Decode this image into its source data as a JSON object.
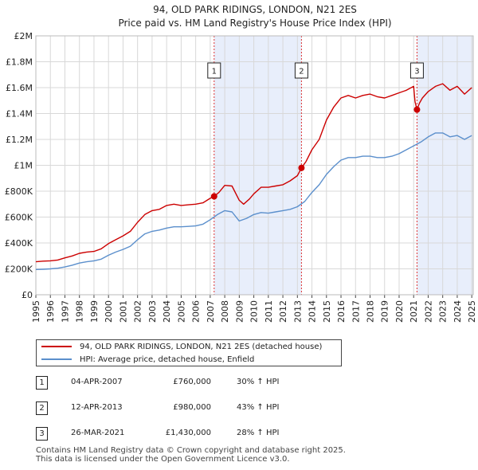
{
  "chart_data": {
    "type": "line",
    "title": "94, OLD PARK RIDINGS, LONDON, N21 2ES",
    "subtitle": "Price paid vs. HM Land Registry's House Price Index (HPI)",
    "xlim": [
      1995,
      2025.1
    ],
    "ylim": [
      0,
      2000000
    ],
    "y_ticks": [
      0,
      200000,
      400000,
      600000,
      800000,
      1000000,
      1200000,
      1400000,
      1600000,
      1800000,
      2000000
    ],
    "y_tick_labels": [
      "£0",
      "£200K",
      "£400K",
      "£600K",
      "£800K",
      "£1M",
      "£1.2M",
      "£1.4M",
      "£1.6M",
      "£1.8M",
      "£2M"
    ],
    "x_ticks": [
      1995,
      1996,
      1997,
      1998,
      1999,
      2000,
      2001,
      2002,
      2003,
      2004,
      2005,
      2006,
      2007,
      2008,
      2009,
      2010,
      2011,
      2012,
      2013,
      2014,
      2015,
      2016,
      2017,
      2018,
      2019,
      2020,
      2021,
      2022,
      2023,
      2024,
      2025
    ],
    "x_tick_labels": [
      "1995",
      "1996",
      "1997",
      "1998",
      "1999",
      "2000",
      "2001",
      "2002",
      "2003",
      "2004",
      "2005",
      "2006",
      "2007",
      "2008",
      "2009",
      "2010",
      "2011",
      "2012",
      "2013",
      "2014",
      "2015",
      "2016",
      "2017",
      "2018",
      "2019",
      "2020",
      "2021",
      "2022",
      "2023",
      "2024",
      "2025"
    ],
    "grid": true,
    "series": [
      {
        "name": "94, OLD PARK RIDINGS, LONDON, N21 2ES (detached house)",
        "color": "#cc0000",
        "x": [
          1995,
          1995.5,
          1996,
          1996.5,
          1997,
          1997.5,
          1998,
          1998.5,
          1999,
          1999.5,
          2000,
          2000.5,
          2001,
          2001.5,
          2002,
          2002.5,
          2003,
          2003.5,
          2004,
          2004.5,
          2005,
          2005.5,
          2006,
          2006.5,
          2007,
          2007.27,
          2007.6,
          2008,
          2008.5,
          2009,
          2009.3,
          2009.7,
          2010,
          2010.5,
          2011,
          2011.5,
          2012,
          2012.5,
          2013,
          2013.28,
          2013.6,
          2014,
          2014.5,
          2015,
          2015.5,
          2016,
          2016.5,
          2017,
          2017.5,
          2018,
          2018.5,
          2019,
          2019.5,
          2020,
          2020.5,
          2021,
          2021.1,
          2021.23,
          2021.4,
          2021.6,
          2022,
          2022.5,
          2023,
          2023.5,
          2024,
          2024.5,
          2025
        ],
        "values": [
          255000,
          260000,
          262000,
          268000,
          285000,
          300000,
          320000,
          330000,
          335000,
          355000,
          395000,
          425000,
          455000,
          490000,
          560000,
          620000,
          650000,
          660000,
          690000,
          700000,
          690000,
          695000,
          700000,
          710000,
          745000,
          760000,
          790000,
          845000,
          840000,
          730000,
          700000,
          740000,
          780000,
          830000,
          830000,
          840000,
          850000,
          880000,
          920000,
          980000,
          1030000,
          1120000,
          1200000,
          1350000,
          1450000,
          1520000,
          1540000,
          1520000,
          1540000,
          1550000,
          1530000,
          1520000,
          1540000,
          1560000,
          1580000,
          1610000,
          1490000,
          1430000,
          1480000,
          1520000,
          1570000,
          1610000,
          1630000,
          1580000,
          1610000,
          1550000,
          1600000
        ]
      },
      {
        "name": "HPI: Average price, detached house, Enfield",
        "color": "#5b8fcc",
        "x": [
          1995,
          1995.5,
          1996,
          1996.5,
          1997,
          1997.5,
          1998,
          1998.5,
          1999,
          1999.5,
          2000,
          2000.5,
          2001,
          2001.5,
          2002,
          2002.5,
          2003,
          2003.5,
          2004,
          2004.5,
          2005,
          2005.5,
          2006,
          2006.5,
          2007,
          2007.5,
          2008,
          2008.5,
          2009,
          2009.5,
          2010,
          2010.5,
          2011,
          2011.5,
          2012,
          2012.5,
          2013,
          2013.5,
          2014,
          2014.5,
          2015,
          2015.5,
          2016,
          2016.5,
          2017,
          2017.5,
          2018,
          2018.5,
          2019,
          2019.5,
          2020,
          2020.5,
          2021,
          2021.5,
          2022,
          2022.5,
          2023,
          2023.5,
          2024,
          2024.5,
          2025
        ],
        "values": [
          195000,
          197000,
          200000,
          205000,
          215000,
          228000,
          245000,
          255000,
          262000,
          275000,
          305000,
          330000,
          350000,
          375000,
          425000,
          470000,
          490000,
          500000,
          515000,
          525000,
          525000,
          528000,
          532000,
          545000,
          580000,
          620000,
          650000,
          640000,
          570000,
          590000,
          620000,
          635000,
          630000,
          640000,
          650000,
          660000,
          680000,
          720000,
          790000,
          850000,
          930000,
          990000,
          1040000,
          1060000,
          1060000,
          1070000,
          1070000,
          1060000,
          1060000,
          1070000,
          1090000,
          1120000,
          1150000,
          1180000,
          1220000,
          1250000,
          1250000,
          1220000,
          1230000,
          1200000,
          1230000
        ]
      }
    ],
    "sales": [
      {
        "label": "1",
        "x": 2007.27,
        "value": 760000
      },
      {
        "label": "2",
        "x": 2013.28,
        "value": 980000
      },
      {
        "label": "3",
        "x": 2021.23,
        "value": 1430000
      }
    ],
    "shaded_ranges": [
      [
        2007.27,
        2013.28
      ],
      [
        2021.23,
        2025.1
      ]
    ]
  },
  "legend": {
    "property_label": "94, OLD PARK RIDINGS, LONDON, N21 2ES (detached house)",
    "hpi_label": "HPI: Average price, detached house, Enfield"
  },
  "transactions": [
    {
      "num": "1",
      "date": "04-APR-2007",
      "price": "£760,000",
      "hpi": "30% ↑ HPI"
    },
    {
      "num": "2",
      "date": "12-APR-2013",
      "price": "£980,000",
      "hpi": "43% ↑ HPI"
    },
    {
      "num": "3",
      "date": "26-MAR-2021",
      "price": "£1,430,000",
      "hpi": "28% ↑ HPI"
    }
  ],
  "footer": {
    "line1": "Contains HM Land Registry data © Crown copyright and database right 2025.",
    "line2": "This data is licensed under the Open Government Licence v3.0."
  },
  "colors": {
    "property": "#cc0000",
    "hpi": "#5b8fcc",
    "shade": "#e8eefb",
    "grid": "#d8d8d8"
  }
}
